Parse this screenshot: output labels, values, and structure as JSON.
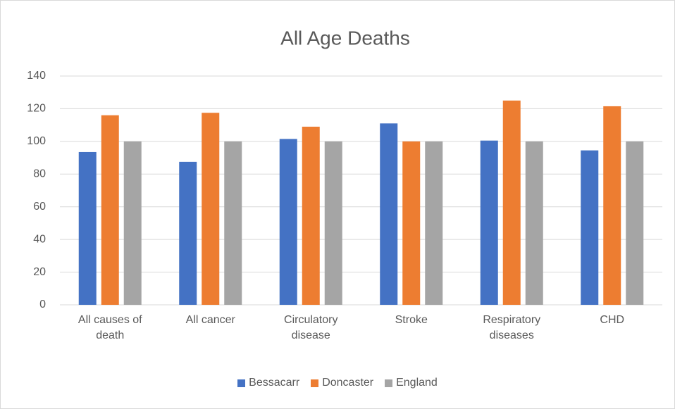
{
  "chart_data": {
    "type": "bar",
    "title": "All Age Deaths",
    "categories": [
      "All causes of death",
      "All cancer",
      "Circulatory disease",
      "Stroke",
      "Respiratory diseases",
      "CHD"
    ],
    "series": [
      {
        "name": "Bessacarr",
        "color": "#4472c4",
        "values": [
          93.5,
          87.5,
          101.5,
          111,
          100.5,
          94.5
        ]
      },
      {
        "name": "Doncaster",
        "color": "#ed7d31",
        "values": [
          116,
          117.5,
          109,
          100,
          125,
          121.5
        ]
      },
      {
        "name": "England",
        "color": "#a5a5a5",
        "values": [
          100,
          100,
          100,
          100,
          100,
          100
        ]
      }
    ],
    "ylim": [
      0,
      140
    ],
    "yticks": [
      0,
      20,
      40,
      60,
      80,
      100,
      120,
      140
    ],
    "grid": true,
    "legend": "bottom"
  }
}
